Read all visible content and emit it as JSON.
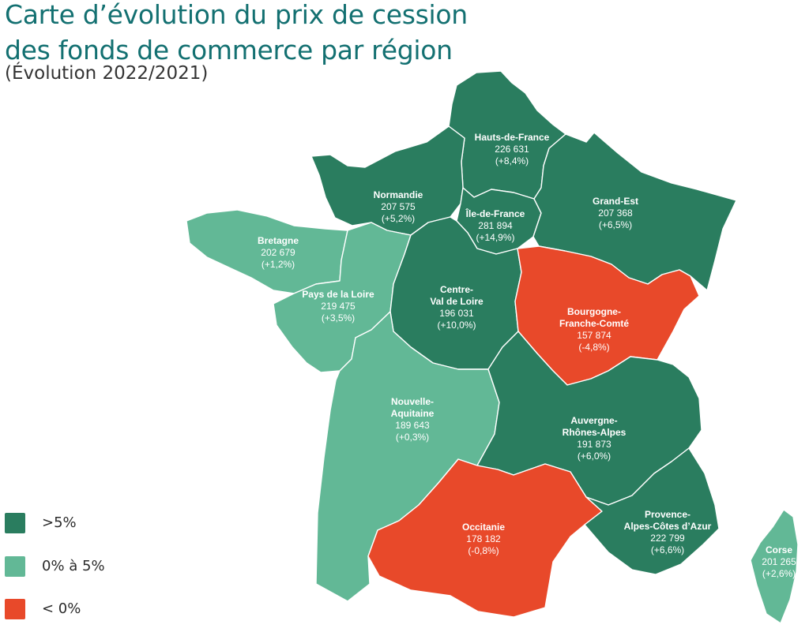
{
  "title": {
    "line1": "Carte d’évolution du prix de cession",
    "line2": "des fonds de commerce par région",
    "subtitle": "(Évolution 2022/2021)"
  },
  "colors": {
    "high": "#2a7d5f",
    "mid": "#62b896",
    "low": "#e8492a"
  },
  "legend": [
    {
      "key": "high",
      "label": ">5%"
    },
    {
      "key": "mid",
      "label": "0% à 5%"
    },
    {
      "key": "low",
      "label": "< 0%"
    }
  ],
  "regions": [
    {
      "id": "hdf",
      "name": "Hauts-de-France",
      "price": "226 631",
      "change": "(+8,4%)",
      "cat": "high"
    },
    {
      "id": "nor",
      "name": "Normandie",
      "price": "207 575",
      "change": "(+5,2%)",
      "cat": "high"
    },
    {
      "id": "idf",
      "name": "Île-de-France",
      "price": "281 894",
      "change": "(+14,9%)",
      "cat": "high"
    },
    {
      "id": "ges",
      "name": "Grand-Est",
      "price": "207 368",
      "change": "(+6,5%)",
      "cat": "high"
    },
    {
      "id": "bre",
      "name": "Bretagne",
      "price": "202 679",
      "change": "(+1,2%)",
      "cat": "mid"
    },
    {
      "id": "pdl",
      "name": "Pays de la Loire",
      "price": "219 475",
      "change": "(+3,5%)",
      "cat": "mid"
    },
    {
      "id": "cvl",
      "name": "Centre-\nVal de Loire",
      "price": "196 031",
      "change": "(+10,0%)",
      "cat": "high"
    },
    {
      "id": "bfc",
      "name": "Bourgogne-\nFranche-Comté",
      "price": "157 874",
      "change": "(-4,8%)",
      "cat": "low"
    },
    {
      "id": "naq",
      "name": "Nouvelle-\nAquitaine",
      "price": "189 643",
      "change": "(+0,3%)",
      "cat": "mid"
    },
    {
      "id": "ara",
      "name": "Auvergne-\nRhônes-Alpes",
      "price": "191 873",
      "change": "(+6,0%)",
      "cat": "high"
    },
    {
      "id": "occ",
      "name": "Occitanie",
      "price": "178 182",
      "change": "(-0,8%)",
      "cat": "low"
    },
    {
      "id": "pac",
      "name": "Provence-\nAlpes-Côtes d’Azur",
      "price": "222 799",
      "change": "(+6,6%)",
      "cat": "high"
    },
    {
      "id": "cor",
      "name": "Corse",
      "price": "201 265",
      "change": "(+2,6%)",
      "cat": "mid"
    }
  ]
}
